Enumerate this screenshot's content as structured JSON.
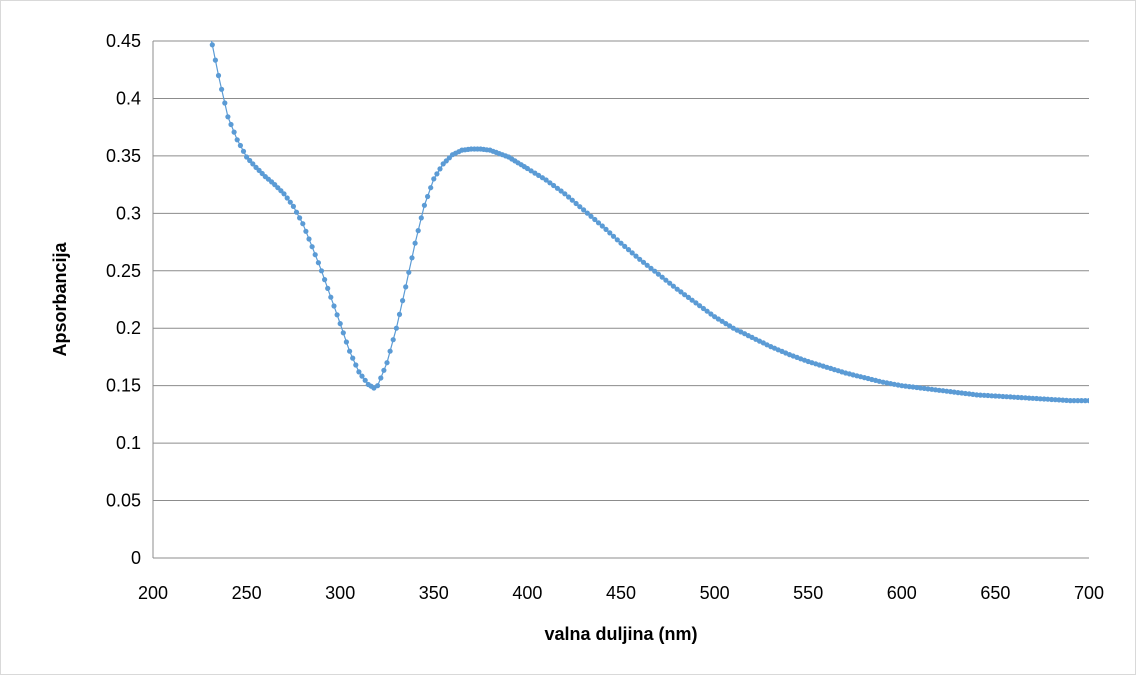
{
  "chart_data": {
    "type": "scatter",
    "title": "",
    "xlabel": "valna duljina (nm)",
    "ylabel": "Apsorbancija",
    "xlim": [
      200,
      700
    ],
    "ylim": [
      0,
      0.45
    ],
    "x_ticks": [
      "200",
      "250",
      "300",
      "350",
      "400",
      "450",
      "500",
      "550",
      "600",
      "650",
      "700"
    ],
    "y_ticks": [
      "0",
      "0.05",
      "0.1",
      "0.15",
      "0.2",
      "0.25",
      "0.3",
      "0.35",
      "0.4",
      "0.45"
    ],
    "grid": "horizontal",
    "legend": "none",
    "series_color": "#5b9bd5",
    "series": [
      {
        "x": [
          230,
          235,
          240,
          245,
          250,
          255,
          260,
          265,
          270,
          275,
          280,
          285,
          290,
          295,
          300,
          305,
          310,
          315,
          318,
          320,
          325,
          330,
          335,
          340,
          345,
          350,
          355,
          360,
          365,
          370,
          375,
          380,
          385,
          390,
          395,
          400,
          410,
          420,
          430,
          440,
          450,
          460,
          470,
          480,
          490,
          500,
          510,
          520,
          530,
          540,
          550,
          560,
          570,
          580,
          590,
          600,
          610,
          620,
          630,
          640,
          650,
          660,
          670,
          680,
          690,
          700
        ],
        "y": [
          0.46,
          0.42,
          0.384,
          0.364,
          0.349,
          0.34,
          0.332,
          0.325,
          0.317,
          0.306,
          0.291,
          0.271,
          0.25,
          0.227,
          0.204,
          0.18,
          0.162,
          0.151,
          0.148,
          0.15,
          0.17,
          0.2,
          0.236,
          0.274,
          0.307,
          0.33,
          0.343,
          0.351,
          0.355,
          0.356,
          0.356,
          0.355,
          0.352,
          0.349,
          0.344,
          0.339,
          0.329,
          0.317,
          0.303,
          0.289,
          0.274,
          0.26,
          0.247,
          0.234,
          0.222,
          0.21,
          0.2,
          0.192,
          0.184,
          0.177,
          0.171,
          0.166,
          0.161,
          0.157,
          0.153,
          0.15,
          0.148,
          0.146,
          0.144,
          0.142,
          0.141,
          0.14,
          0.139,
          0.138,
          0.137,
          0.137
        ]
      }
    ]
  }
}
